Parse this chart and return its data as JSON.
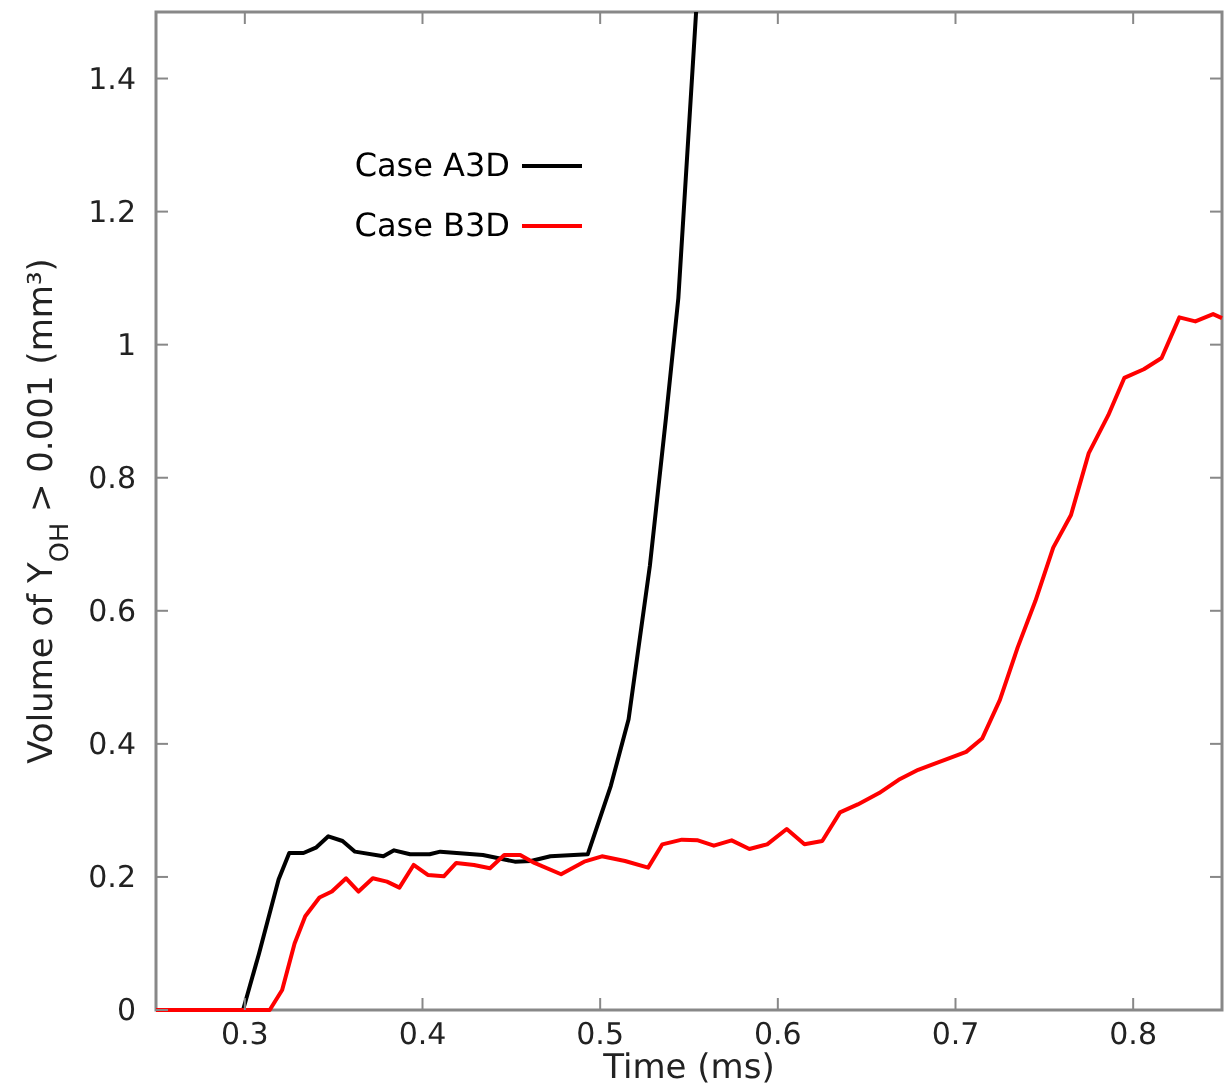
{
  "chart_data": {
    "type": "line",
    "xlabel": "Time (ms)",
    "ylabel": "Volume of Y$_{OH}$ > 0.001 (mm³)",
    "xlim": [
      0.25,
      0.85
    ],
    "xticks": [
      0.3,
      0.4,
      0.5,
      0.6,
      0.7,
      0.8
    ],
    "ylim": [
      0,
      1.5
    ],
    "yticks": [
      0,
      0.2,
      0.4,
      0.6,
      0.8,
      1,
      1.2,
      1.4
    ],
    "grid": false,
    "legend": "top left",
    "line_style": "solid",
    "series": [
      {
        "name": "Case A3D",
        "color": "#000000",
        "x": [
          0.25,
          0.299,
          0.308,
          0.319,
          0.325,
          0.333,
          0.34,
          0.347,
          0.355,
          0.362,
          0.378,
          0.384,
          0.393,
          0.404,
          0.41,
          0.434,
          0.452,
          0.461,
          0.472,
          0.493,
          0.506,
          0.516,
          0.528,
          0.537,
          0.544,
          0.554
        ],
        "values": [
          0,
          0,
          0.085,
          0.196,
          0.236,
          0.236,
          0.244,
          0.261,
          0.254,
          0.238,
          0.231,
          0.24,
          0.234,
          0.234,
          0.238,
          0.233,
          0.223,
          0.224,
          0.231,
          0.234,
          0.337,
          0.437,
          0.668,
          0.889,
          1.07,
          1.5
        ]
      },
      {
        "name": "Case B3D",
        "color": "#ff0000",
        "x": [
          0.25,
          0.314,
          0.321,
          0.328,
          0.334,
          0.342,
          0.349,
          0.357,
          0.364,
          0.372,
          0.38,
          0.387,
          0.395,
          0.403,
          0.412,
          0.419,
          0.429,
          0.438,
          0.446,
          0.455,
          0.463,
          0.478,
          0.491,
          0.501,
          0.514,
          0.527,
          0.535,
          0.546,
          0.555,
          0.564,
          0.574,
          0.584,
          0.594,
          0.605,
          0.615,
          0.625,
          0.635,
          0.645,
          0.657,
          0.668,
          0.679,
          0.694,
          0.706,
          0.715,
          0.725,
          0.735,
          0.745,
          0.755,
          0.765,
          0.775,
          0.786,
          0.795,
          0.806,
          0.816,
          0.826,
          0.835,
          0.845,
          0.85
        ],
        "values": [
          0,
          0,
          0.03,
          0.1,
          0.141,
          0.169,
          0.178,
          0.198,
          0.178,
          0.198,
          0.193,
          0.184,
          0.218,
          0.203,
          0.201,
          0.221,
          0.218,
          0.213,
          0.233,
          0.233,
          0.221,
          0.204,
          0.223,
          0.231,
          0.224,
          0.214,
          0.249,
          0.256,
          0.255,
          0.247,
          0.255,
          0.242,
          0.249,
          0.272,
          0.249,
          0.254,
          0.297,
          0.309,
          0.326,
          0.346,
          0.361,
          0.376,
          0.388,
          0.408,
          0.466,
          0.545,
          0.615,
          0.695,
          0.744,
          0.837,
          0.894,
          0.95,
          0.963,
          0.98,
          1.041,
          1.035,
          1.046,
          1.04
        ]
      }
    ]
  }
}
